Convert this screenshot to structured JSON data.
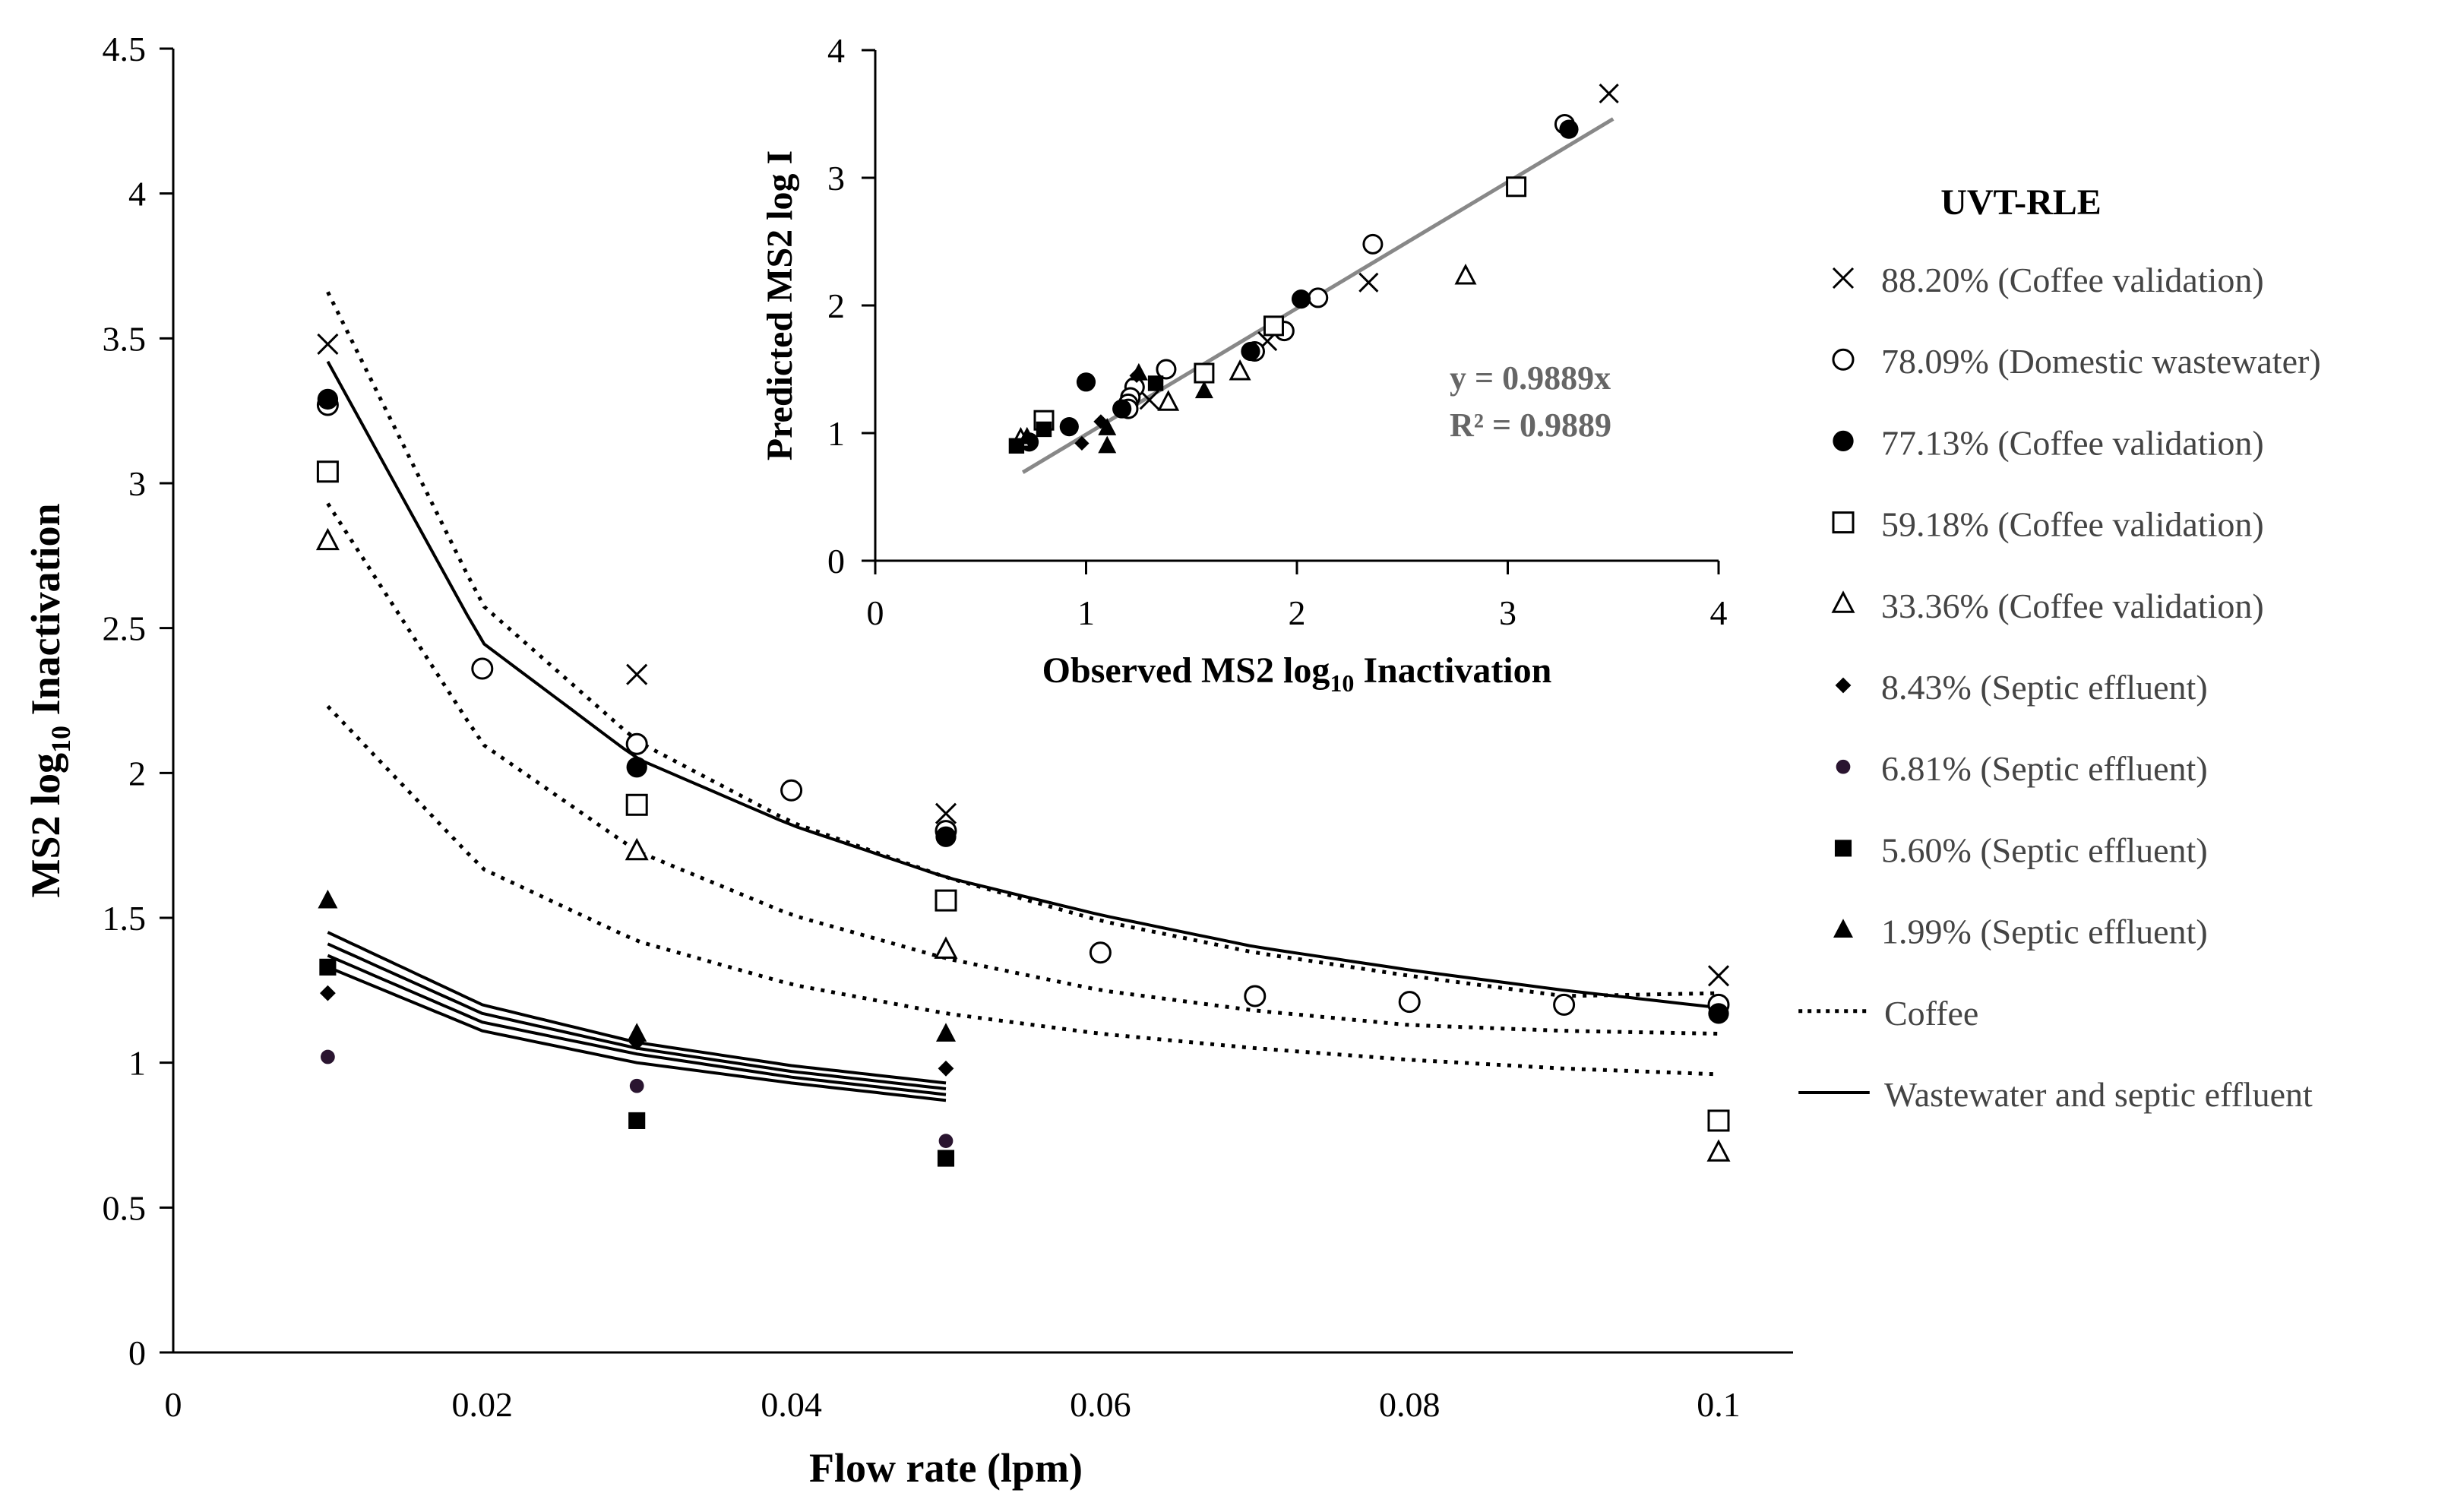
{
  "colors": {
    "axis": "#000000",
    "marker": "#000000",
    "fit_line": "#888888",
    "annotation": "#666666",
    "legend_text": "#444444",
    "septic_681_fill": "#2a1530"
  },
  "chart_data": [
    {
      "id": "main",
      "type": "scatter",
      "title": "",
      "xlabel_main": "Flow rate (lpm)",
      "ylabel_main": "MS2 log",
      "ylabel_sub": "10",
      "ylabel_tail": " Inactivation",
      "xlim": [
        0,
        0.1
      ],
      "ylim": [
        0,
        4.5
      ],
      "x_ticks": [
        0,
        0.02,
        0.04,
        0.06,
        0.08,
        0.1
      ],
      "x_tick_labels": [
        "0",
        "0.02",
        "0.04",
        "0.06",
        "0.08",
        "0.1"
      ],
      "y_ticks": [
        0,
        0.5,
        1,
        1.5,
        2,
        2.5,
        3,
        3.5,
        4,
        4.5
      ],
      "y_tick_labels": [
        "0",
        "0.5",
        "1",
        "1.5",
        "2",
        "2.5",
        "3",
        "3.5",
        "4",
        "4.5"
      ],
      "series": [
        {
          "name": "88.20% (Coffee validation)",
          "marker": "x",
          "points": [
            [
              0.01,
              3.48
            ],
            [
              0.03,
              2.34
            ],
            [
              0.05,
              1.86
            ],
            [
              0.1,
              1.3
            ]
          ]
        },
        {
          "name": "78.09% (Domestic wastewater)",
          "marker": "circle-open",
          "points": [
            [
              0.01,
              3.27
            ],
            [
              0.02,
              2.36
            ],
            [
              0.03,
              2.1
            ],
            [
              0.04,
              1.94
            ],
            [
              0.05,
              1.8
            ],
            [
              0.06,
              1.38
            ],
            [
              0.07,
              1.23
            ],
            [
              0.08,
              1.21
            ],
            [
              0.09,
              1.2
            ],
            [
              0.1,
              1.2
            ]
          ]
        },
        {
          "name": "77.13% (Coffee validation)",
          "marker": "circle-filled",
          "points": [
            [
              0.01,
              3.29
            ],
            [
              0.03,
              2.02
            ],
            [
              0.05,
              1.78
            ],
            [
              0.1,
              1.17
            ]
          ]
        },
        {
          "name": "59.18% (Coffee validation)",
          "marker": "square-open",
          "points": [
            [
              0.01,
              3.04
            ],
            [
              0.03,
              1.89
            ],
            [
              0.05,
              1.56
            ],
            [
              0.1,
              0.8
            ]
          ]
        },
        {
          "name": "33.36% (Coffee validation)",
          "marker": "triangle-open",
          "points": [
            [
              0.01,
              2.8
            ],
            [
              0.03,
              1.73
            ],
            [
              0.05,
              1.39
            ],
            [
              0.1,
              0.69
            ]
          ]
        },
        {
          "name": "8.43% (Septic effluent)",
          "marker": "diamond-filled",
          "points": [
            [
              0.01,
              1.24
            ],
            [
              0.03,
              1.07
            ],
            [
              0.05,
              0.98
            ]
          ]
        },
        {
          "name": "6.81% (Septic effluent)",
          "marker": "circle-small",
          "points": [
            [
              0.01,
              1.02
            ],
            [
              0.03,
              0.92
            ],
            [
              0.05,
              0.73
            ]
          ]
        },
        {
          "name": "5.60% (Septic effluent)",
          "marker": "square-filled",
          "points": [
            [
              0.01,
              1.33
            ],
            [
              0.03,
              0.8
            ],
            [
              0.05,
              0.67
            ]
          ]
        },
        {
          "name": "1.99% (Septic effluent)",
          "marker": "triangle-filled",
          "points": [
            [
              0.01,
              1.56
            ],
            [
              0.03,
              1.1
            ],
            [
              0.05,
              1.1
            ]
          ]
        }
      ],
      "curves": [
        {
          "group": "Coffee",
          "style": "dotted",
          "x_range": [
            0.01,
            0.1
          ],
          "points": [
            [
              0.01,
              3.66
            ],
            [
              0.02,
              2.58
            ],
            [
              0.03,
              2.11
            ],
            [
              0.04,
              1.83
            ],
            [
              0.05,
              1.64
            ],
            [
              0.06,
              1.49
            ],
            [
              0.07,
              1.38
            ],
            [
              0.08,
              1.3
            ],
            [
              0.09,
              1.23
            ],
            [
              0.1,
              1.24
            ]
          ]
        },
        {
          "group": "Coffee",
          "style": "dotted",
          "x_range": [
            0.01,
            0.1
          ],
          "points": [
            [
              0.01,
              2.93
            ],
            [
              0.02,
              2.1
            ],
            [
              0.03,
              1.73
            ],
            [
              0.04,
              1.51
            ],
            [
              0.05,
              1.36
            ],
            [
              0.06,
              1.25
            ],
            [
              0.07,
              1.18
            ],
            [
              0.08,
              1.13
            ],
            [
              0.09,
              1.11
            ],
            [
              0.1,
              1.1
            ]
          ]
        },
        {
          "group": "Coffee",
          "style": "dotted",
          "x_range": [
            0.01,
            0.1
          ],
          "points": [
            [
              0.01,
              2.23
            ],
            [
              0.02,
              1.67
            ],
            [
              0.03,
              1.42
            ],
            [
              0.04,
              1.27
            ],
            [
              0.05,
              1.17
            ],
            [
              0.06,
              1.1
            ],
            [
              0.07,
              1.05
            ],
            [
              0.08,
              1.01
            ],
            [
              0.09,
              0.98
            ],
            [
              0.1,
              0.96
            ]
          ]
        },
        {
          "group": "Wastewater and septic effluent",
          "style": "solid",
          "x_range": [
            0.01,
            0.1
          ],
          "points": [
            [
              0.01,
              3.42
            ],
            [
              0.02,
              2.45
            ],
            [
              0.03,
              2.05
            ],
            [
              0.04,
              1.82
            ],
            [
              0.05,
              1.64
            ],
            [
              0.06,
              1.51
            ],
            [
              0.07,
              1.4
            ],
            [
              0.08,
              1.32
            ],
            [
              0.09,
              1.25
            ],
            [
              0.1,
              1.19
            ]
          ]
        },
        {
          "group": "Wastewater and septic effluent",
          "style": "solid",
          "x_range": [
            0.01,
            0.05
          ],
          "points": [
            [
              0.01,
              1.45
            ],
            [
              0.02,
              1.2
            ],
            [
              0.03,
              1.07
            ],
            [
              0.04,
              0.99
            ],
            [
              0.05,
              0.93
            ]
          ]
        },
        {
          "group": "Wastewater and septic effluent",
          "style": "solid",
          "x_range": [
            0.01,
            0.05
          ],
          "points": [
            [
              0.01,
              1.41
            ],
            [
              0.02,
              1.17
            ],
            [
              0.03,
              1.05
            ],
            [
              0.04,
              0.97
            ],
            [
              0.05,
              0.91
            ]
          ]
        },
        {
          "group": "Wastewater and septic effluent",
          "style": "solid",
          "x_range": [
            0.01,
            0.05
          ],
          "points": [
            [
              0.01,
              1.37
            ],
            [
              0.02,
              1.14
            ],
            [
              0.03,
              1.03
            ],
            [
              0.04,
              0.95
            ],
            [
              0.05,
              0.89
            ]
          ]
        },
        {
          "group": "Wastewater and septic effluent",
          "style": "solid",
          "x_range": [
            0.01,
            0.05
          ],
          "points": [
            [
              0.01,
              1.33
            ],
            [
              0.02,
              1.11
            ],
            [
              0.03,
              1.0
            ],
            [
              0.04,
              0.93
            ],
            [
              0.05,
              0.87
            ]
          ]
        }
      ]
    },
    {
      "id": "inset",
      "type": "scatter",
      "xlabel_main": "Observed MS2 log",
      "xlabel_sub": "10",
      "xlabel_tail": " Inactivation",
      "ylabel": "Predicted MS2 log I",
      "xlim": [
        0,
        4
      ],
      "ylim": [
        0,
        4
      ],
      "x_ticks": [
        0,
        1,
        2,
        3,
        4
      ],
      "x_tick_labels": [
        "0",
        "1",
        "2",
        "3",
        "4"
      ],
      "y_ticks": [
        0,
        1,
        2,
        3,
        4
      ],
      "y_tick_labels": [
        "0",
        "1",
        "2",
        "3",
        "4"
      ],
      "fit": {
        "slope": 0.9889,
        "x_range": [
          0.7,
          3.5
        ]
      },
      "equation_text": "y = 0.9889x",
      "r2_text": "R² = 0.9889",
      "series": [
        {
          "marker": "x",
          "points": [
            [
              3.48,
              3.66
            ],
            [
              2.34,
              2.18
            ],
            [
              1.86,
              1.72
            ],
            [
              1.3,
              1.26
            ]
          ]
        },
        {
          "marker": "circle-open",
          "points": [
            [
              3.27,
              3.42
            ],
            [
              2.36,
              2.48
            ],
            [
              2.1,
              2.06
            ],
            [
              1.94,
              1.8
            ],
            [
              1.8,
              1.64
            ],
            [
              1.38,
              1.5
            ],
            [
              1.23,
              1.36
            ],
            [
              1.21,
              1.28
            ],
            [
              1.2,
              1.23
            ],
            [
              1.2,
              1.19
            ]
          ]
        },
        {
          "marker": "circle-filled",
          "points": [
            [
              3.29,
              3.38
            ],
            [
              2.02,
              2.05
            ],
            [
              1.78,
              1.64
            ],
            [
              1.17,
              1.19
            ],
            [
              1.0,
              1.4
            ],
            [
              0.92,
              1.05
            ],
            [
              0.73,
              0.93
            ]
          ]
        },
        {
          "marker": "square-open",
          "points": [
            [
              3.04,
              2.93
            ],
            [
              1.89,
              1.84
            ],
            [
              1.56,
              1.47
            ],
            [
              0.8,
              1.1
            ]
          ]
        },
        {
          "marker": "triangle-open",
          "points": [
            [
              2.8,
              2.23
            ],
            [
              1.73,
              1.48
            ],
            [
              1.39,
              1.24
            ],
            [
              0.69,
              0.95
            ]
          ]
        },
        {
          "marker": "diamond-filled",
          "points": [
            [
              1.24,
              1.45
            ],
            [
              1.07,
              1.09
            ],
            [
              0.98,
              0.92
            ]
          ]
        },
        {
          "marker": "square-filled",
          "points": [
            [
              1.33,
              1.39
            ],
            [
              0.8,
              1.03
            ],
            [
              0.67,
              0.9
            ]
          ]
        },
        {
          "marker": "triangle-filled",
          "points": [
            [
              1.56,
              1.33
            ],
            [
              1.1,
              0.9
            ],
            [
              1.1,
              1.04
            ],
            [
              1.25,
              1.47
            ],
            [
              0.72,
              0.97
            ]
          ]
        }
      ]
    }
  ],
  "legend": {
    "title": "UVT-RLE",
    "items": [
      {
        "marker": "x",
        "label": "88.20% (Coffee validation)"
      },
      {
        "marker": "circle-open",
        "label": "78.09% (Domestic wastewater)"
      },
      {
        "marker": "circle-filled",
        "label": "77.13% (Coffee validation)"
      },
      {
        "marker": "square-open",
        "label": "59.18% (Coffee validation)"
      },
      {
        "marker": "triangle-open",
        "label": "33.36% (Coffee validation)"
      },
      {
        "marker": "diamond-filled",
        "label": "8.43% (Septic effluent)"
      },
      {
        "marker": "circle-small",
        "label": "6.81% (Septic effluent)"
      },
      {
        "marker": "square-filled",
        "label": "5.60% (Septic effluent)"
      },
      {
        "marker": "triangle-filled",
        "label": "1.99% (Septic effluent)"
      },
      {
        "marker": "line-dotted",
        "label": "Coffee"
      },
      {
        "marker": "line-solid",
        "label": "Wastewater and septic effluent"
      }
    ]
  }
}
